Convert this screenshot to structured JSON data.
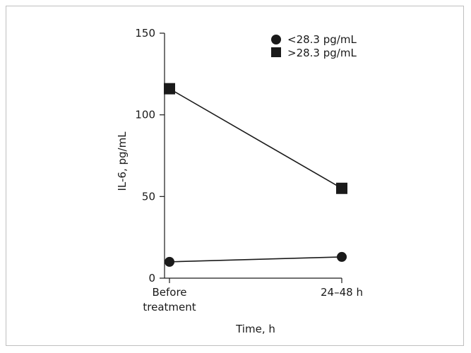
{
  "chart_data": {
    "type": "line",
    "categories": [
      "Before treatment",
      "24–48 h"
    ],
    "x_tick_lines": [
      [
        "Before",
        "treatment"
      ],
      [
        "24–48 h"
      ]
    ],
    "xlabel": "Time, h",
    "ylabel": "IL-6, pg/mL",
    "ylim": [
      0,
      150
    ],
    "yticks": [
      0,
      50,
      100,
      150
    ],
    "series": [
      {
        "name": "<28.3 pg/mL",
        "marker": "circle",
        "color": "#1a1a1a",
        "values": [
          10,
          13
        ]
      },
      {
        "name": ">28.3 pg/mL",
        "marker": "square",
        "color": "#1a1a1a",
        "values": [
          116,
          55
        ]
      }
    ],
    "legend_position": "top-right",
    "grid": false
  }
}
